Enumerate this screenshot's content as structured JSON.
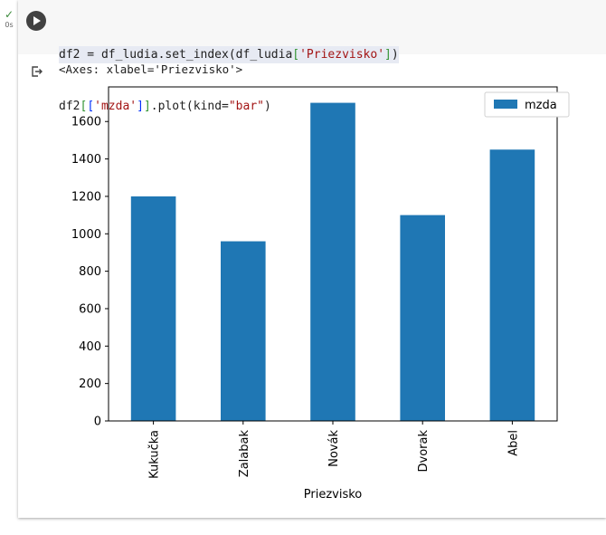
{
  "cell": {
    "status_icon": "check-icon",
    "exec_time": "0s",
    "run_icon": "play-icon",
    "code": {
      "line1": {
        "pre": "df2 = df_ludia.set_index(df_ludia",
        "bracket_open": "[",
        "string": "'Priezvisko'",
        "bracket_close": "]",
        "post": ")"
      },
      "line2": {
        "pre": "df2",
        "b1": "[",
        "b2": "[",
        "string1": "'mzda'",
        "b3": "]",
        "b4": "]",
        "mid": ".plot(kind=",
        "string2": "\"bar\"",
        "post": ")"
      }
    },
    "output_icon": "output-arrow-icon",
    "output_text": "<Axes: xlabel='Priezvisko'>"
  },
  "chart_data": {
    "type": "bar",
    "categories": [
      "Kukučka",
      "Zalabak",
      "Novák",
      "Dvorak",
      "Abel"
    ],
    "series": [
      {
        "name": "mzda",
        "values": [
          1200,
          960,
          1700,
          1100,
          1450
        ],
        "color": "#1f77b4"
      }
    ],
    "xlabel": "Priezvisko",
    "ylabel": "",
    "ylim": [
      0,
      1785
    ],
    "yticks": [
      0,
      200,
      400,
      600,
      800,
      1000,
      1200,
      1400,
      1600
    ],
    "legend": "top-right",
    "grid": false
  }
}
